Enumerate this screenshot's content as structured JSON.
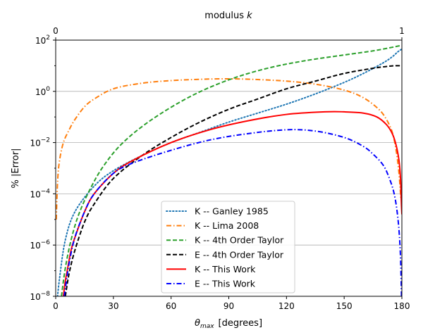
{
  "chart_data": {
    "type": "line",
    "title_top_axis": "modulus",
    "title_top_axis_var": "k",
    "top_axis_ticks": [
      "0",
      "1"
    ],
    "xlabel_var": "θ",
    "xlabel_sub": "max",
    "xlabel_unit": "[degrees]",
    "ylabel": "% |Error|",
    "xlim": [
      0,
      180
    ],
    "ylim_log10": [
      -8,
      2
    ],
    "x_ticks": [
      0,
      30,
      60,
      90,
      120,
      150,
      180
    ],
    "x_tick_labels": [
      "0",
      "30",
      "60",
      "90",
      "120",
      "150",
      "180"
    ],
    "y_ticks_log10": [
      -8,
      -6,
      -4,
      -2,
      0,
      2
    ],
    "y_tick_base": "10",
    "y_tick_exponents": [
      "−8",
      "−6",
      "−4",
      "−2",
      "0",
      "2"
    ],
    "grid": "horizontal",
    "legend_position": "lower-center",
    "series": [
      {
        "name": "K -- Ganley 1985",
        "color": "#1f77b4",
        "style": "dotted",
        "x": [
          0.3,
          2,
          5,
          10,
          20,
          30,
          45,
          60,
          75,
          90,
          105,
          120,
          135,
          150,
          160,
          170,
          175,
          178,
          180
        ],
        "log10_error": [
          -8.5,
          -7.3,
          -5.8,
          -4.7,
          -3.7,
          -3.1,
          -2.5,
          -2.0,
          -1.6,
          -1.2,
          -0.85,
          -0.5,
          -0.1,
          0.35,
          0.7,
          1.1,
          1.35,
          1.55,
          1.65
        ]
      },
      {
        "name": "K -- Lima 2008",
        "color": "#ff7f0e",
        "style": "dashdot",
        "x": [
          0.3,
          1,
          2,
          4,
          7,
          10,
          15,
          20,
          30,
          45,
          60,
          75,
          90,
          105,
          120,
          135,
          150,
          160,
          168,
          172,
          175,
          177,
          178.5,
          179.5
        ],
        "log10_error": [
          -5.0,
          -3.5,
          -2.7,
          -2.0,
          -1.5,
          -1.1,
          -0.6,
          -0.3,
          0.1,
          0.32,
          0.42,
          0.47,
          0.49,
          0.46,
          0.4,
          0.28,
          0.05,
          -0.25,
          -0.7,
          -1.1,
          -1.6,
          -2.3,
          -3.2,
          -4.2
        ]
      },
      {
        "name": "K -- 4th Order Taylor",
        "color": "#2ca02c",
        "style": "dashed",
        "x": [
          3,
          5,
          8,
          12,
          18,
          25,
          35,
          50,
          70,
          90,
          110,
          130,
          150,
          165,
          175,
          180
        ],
        "log10_error": [
          -8.0,
          -6.9,
          -5.8,
          -4.8,
          -3.8,
          -2.9,
          -2.0,
          -1.1,
          -0.2,
          0.45,
          0.9,
          1.2,
          1.42,
          1.58,
          1.72,
          1.8
        ]
      },
      {
        "name": "E -- 4th Order Taylor",
        "color": "#000000",
        "style": "dashed",
        "x": [
          5,
          7,
          10,
          15,
          20,
          30,
          45,
          60,
          75,
          90,
          105,
          120,
          135,
          150,
          165,
          172,
          176,
          180
        ],
        "log10_error": [
          -8.0,
          -7.1,
          -6.2,
          -5.1,
          -4.4,
          -3.4,
          -2.5,
          -1.8,
          -1.2,
          -0.7,
          -0.3,
          0.1,
          0.4,
          0.7,
          0.9,
          0.97,
          1.0,
          1.0
        ]
      },
      {
        "name": "K -- This Work",
        "color": "#ff0000",
        "style": "solid",
        "x": [
          4,
          5,
          6,
          8,
          10,
          15,
          20,
          30,
          40,
          60,
          80,
          100,
          120,
          140,
          150,
          160,
          167,
          172,
          175,
          177,
          178.5,
          179.3,
          179.7,
          180
        ],
        "log10_error": [
          -8.0,
          -7.4,
          -7.0,
          -6.2,
          -5.7,
          -4.7,
          -4.0,
          -3.2,
          -2.7,
          -2.0,
          -1.5,
          -1.15,
          -0.9,
          -0.8,
          -0.8,
          -0.85,
          -1.0,
          -1.3,
          -1.65,
          -2.1,
          -2.7,
          -3.4,
          -4.3,
          -4.8
        ]
      },
      {
        "name": "E -- This Work",
        "color": "#0000ff",
        "style": "dashdot",
        "x": [
          4.5,
          5,
          7,
          10,
          15,
          20,
          30,
          40,
          60,
          80,
          100,
          120,
          135,
          150,
          160,
          165,
          170,
          173,
          176,
          178,
          179.2,
          179.8
        ],
        "log10_error": [
          -8.0,
          -7.7,
          -6.7,
          -5.7,
          -4.7,
          -4.0,
          -3.2,
          -2.8,
          -2.3,
          -1.9,
          -1.65,
          -1.5,
          -1.55,
          -1.8,
          -2.15,
          -2.45,
          -2.85,
          -3.3,
          -4.0,
          -5.0,
          -6.3,
          -8.0
        ]
      }
    ]
  }
}
